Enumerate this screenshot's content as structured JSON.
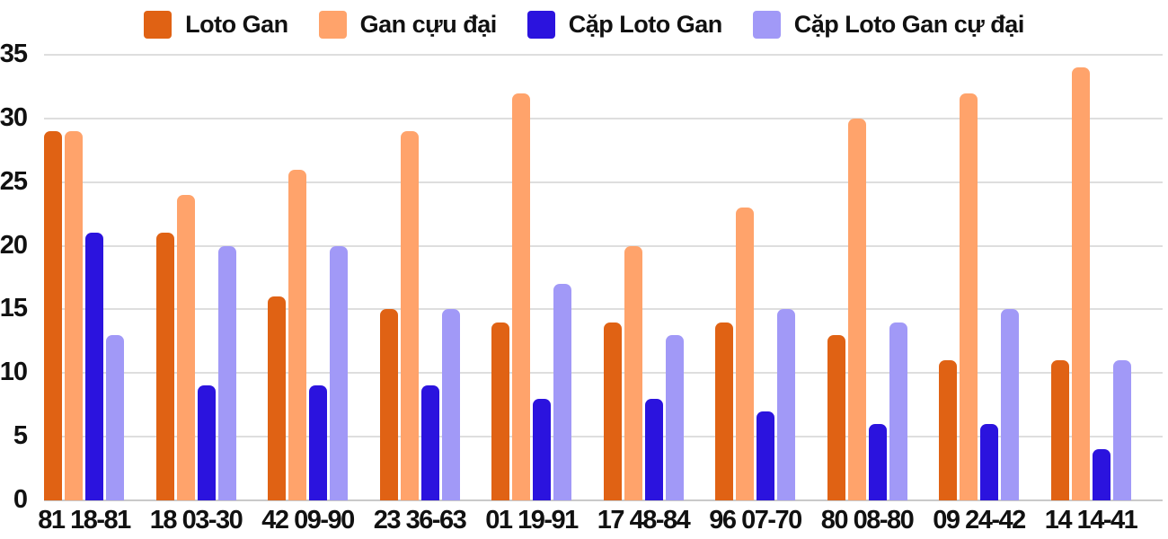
{
  "chart_data": {
    "type": "bar",
    "title": "",
    "xlabel": "",
    "ylabel": "",
    "categories": [
      "81 18-81",
      "18 03-30",
      "42 09-90",
      "23 36-63",
      "01 19-91",
      "17 48-84",
      "96 07-70",
      "80 08-80",
      "09 24-42",
      "14 14-41"
    ],
    "series": [
      {
        "name": "Loto Gan",
        "color": "#e06214",
        "values": [
          29,
          21,
          16,
          15,
          14,
          14,
          14,
          13,
          11,
          11
        ]
      },
      {
        "name": "Gan cựu đại",
        "color": "#ffa36b",
        "values": [
          29,
          24,
          26,
          29,
          32,
          20,
          23,
          30,
          32,
          34
        ]
      },
      {
        "name": "Cặp Loto Gan",
        "color": "#2b13de",
        "values": [
          21,
          9,
          9,
          9,
          8,
          8,
          7,
          6,
          6,
          4
        ]
      },
      {
        "name": "Cặp Loto Gan cự đại",
        "color": "#a199f7",
        "values": [
          13,
          20,
          20,
          15,
          17,
          13,
          15,
          14,
          15,
          11
        ]
      }
    ],
    "ylim": [
      0,
      35
    ],
    "yticks": [
      0,
      5,
      10,
      15,
      20,
      25,
      30,
      35
    ],
    "grid": true,
    "legend_position": "top",
    "axis_text_color": "#111111",
    "gridline_color": "#dedede",
    "baseline_color": "#c9c9c9",
    "background_color": "#ffffff"
  }
}
